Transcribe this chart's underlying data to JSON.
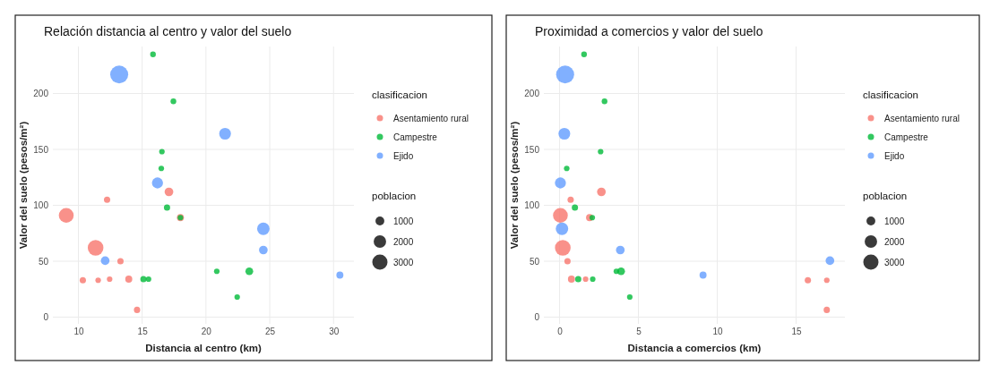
{
  "chart_data": [
    {
      "type": "bubble",
      "title": "Relación distancia al centro y valor del suelo",
      "xlabel": "Distancia al centro (km)",
      "ylabel": "Valor del suelo (pesos/m²)",
      "legend_title": "clasificacion",
      "annotations": [
        "poblacion"
      ],
      "legend": "right",
      "grid": true,
      "marker": "circle",
      "xlim": [
        8,
        31.6
      ],
      "xticks": [
        10,
        15,
        20,
        25,
        30
      ],
      "ylim": [
        -6,
        242
      ],
      "yticks": [
        0,
        50,
        100,
        150,
        200
      ],
      "size_legend": [
        1000,
        2000,
        3000
      ],
      "series": [
        {
          "name": "Asentamiento rural",
          "color": "#f8766d",
          "x": [
            9.05,
            11.35,
            17.1,
            12.25,
            18.0,
            13.3,
            10.35,
            11.55,
            12.45,
            13.95,
            14.6
          ],
          "values": [
            91,
            62,
            112,
            105,
            89,
            50,
            33,
            33,
            34,
            34,
            6.5
          ],
          "sizes": [
            2850,
            3180,
            970,
            510,
            640,
            510,
            510,
            400,
            400,
            640,
            510
          ]
        },
        {
          "name": "Campestre",
          "color": "#00ba38",
          "x": [
            15.85,
            17.45,
            16.55,
            16.5,
            16.95,
            18.0,
            20.85,
            23.4,
            22.45,
            15.1,
            15.5
          ],
          "values": [
            235,
            193,
            148,
            133,
            98,
            89,
            41,
            41,
            18,
            34,
            34
          ],
          "sizes": [
            420,
            420,
            400,
            400,
            510,
            400,
            400,
            780,
            400,
            510,
            400
          ]
        },
        {
          "name": "Ejido",
          "color": "#619cff",
          "x": [
            13.2,
            21.5,
            16.2,
            24.5,
            24.5,
            12.1,
            30.5
          ],
          "values": [
            217,
            164,
            120,
            79,
            60,
            50.5,
            37.6
          ],
          "sizes": [
            4200,
            1780,
            1570,
            2000,
            970,
            970,
            640
          ]
        }
      ]
    },
    {
      "type": "bubble",
      "title": "Proximidad a comercios y valor del suelo",
      "xlabel": "Distancia a comercios (km)",
      "ylabel": "Valor del suelo (pesos/m²)",
      "legend_title": "clasificacion",
      "annotations": [
        "poblacion"
      ],
      "legend": "right",
      "grid": true,
      "marker": "circle",
      "xlim": [
        -1,
        18.1
      ],
      "xticks": [
        0,
        5,
        10,
        15
      ],
      "ylim": [
        -6,
        242
      ],
      "yticks": [
        0,
        50,
        100,
        150,
        200
      ],
      "size_legend": [
        1000,
        2000,
        3000
      ],
      "series": [
        {
          "name": "Asentamiento rural",
          "color": "#f8766d",
          "x": [
            0.05,
            0.2,
            2.65,
            0.7,
            1.9,
            0.5,
            15.75,
            16.95,
            1.65,
            0.75,
            16.95
          ],
          "values": [
            91,
            62,
            112,
            105,
            89,
            50,
            33,
            33,
            34,
            34,
            6.5
          ],
          "sizes": [
            2850,
            3180,
            970,
            510,
            640,
            510,
            510,
            400,
            400,
            640,
            510
          ]
        },
        {
          "name": "Campestre",
          "color": "#00ba38",
          "x": [
            1.55,
            2.85,
            2.6,
            0.45,
            0.97,
            2.07,
            3.6,
            3.9,
            4.45,
            1.18,
            2.1
          ],
          "values": [
            235,
            193,
            148,
            133,
            98,
            89,
            41,
            41,
            18,
            34,
            34
          ],
          "sizes": [
            420,
            420,
            400,
            400,
            510,
            400,
            400,
            780,
            400,
            510,
            400
          ]
        },
        {
          "name": "Ejido",
          "color": "#619cff",
          "x": [
            0.35,
            0.3,
            0.05,
            0.15,
            3.85,
            17.15,
            9.1
          ],
          "values": [
            217,
            164,
            120,
            79,
            60,
            50.5,
            37.6
          ],
          "sizes": [
            4200,
            1780,
            1570,
            2000,
            970,
            970,
            640
          ]
        }
      ]
    }
  ]
}
